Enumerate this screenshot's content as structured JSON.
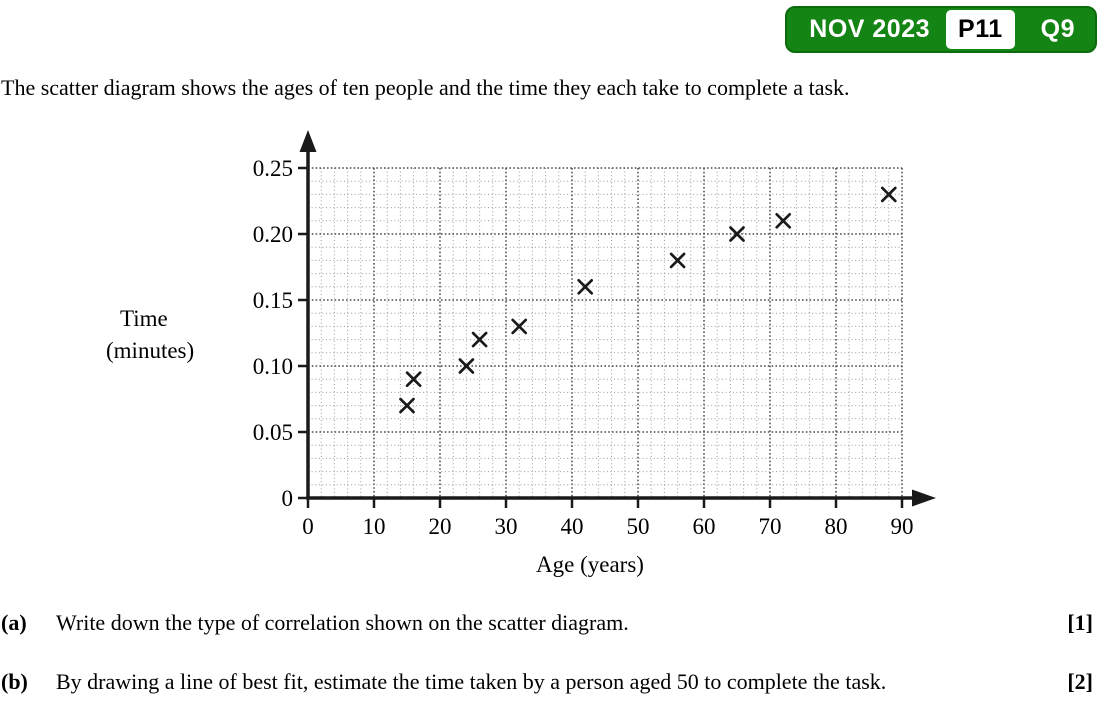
{
  "badge": {
    "session": "NOV 2023",
    "paper": "P11",
    "question": "Q9"
  },
  "colors": {
    "badge_green": "#148414",
    "badge_border": "#0c6b0c",
    "badge_text": "#ffffff",
    "paper_box_bg": "#ffffff",
    "paper_box_text": "#000000",
    "axis": "#1a1a1a",
    "grid_minor": "#9a9a9a",
    "grid_major": "#4a4a4a",
    "marker": "#1a1a1a",
    "text": "#000000"
  },
  "intro_text": "The scatter diagram shows the ages of ten people and the time they each take to complete a task.",
  "chart_data": {
    "type": "scatter",
    "title": "",
    "xlabel": "Age (years)",
    "ylabel": "Time (minutes)",
    "ylabel_lines": [
      "Time",
      "(minutes)"
    ],
    "xlim": [
      0,
      90
    ],
    "ylim": [
      0,
      0.25
    ],
    "x_major_ticks": [
      0,
      10,
      20,
      30,
      40,
      50,
      60,
      70,
      80,
      90
    ],
    "x_minor_step": 2,
    "y_major_ticks": [
      0,
      0.05,
      0.1,
      0.15,
      0.2,
      0.25
    ],
    "y_tick_labels": [
      "0",
      "0.05",
      "0.10",
      "0.15",
      "0.20",
      "0.25"
    ],
    "y_minor_step": 0.01,
    "grid_style": "dotted",
    "legend": "none",
    "marker": "x",
    "points": [
      [
        15,
        0.07
      ],
      [
        16,
        0.09
      ],
      [
        24,
        0.1
      ],
      [
        26,
        0.12
      ],
      [
        32,
        0.13
      ],
      [
        42,
        0.16
      ],
      [
        56,
        0.18
      ],
      [
        65,
        0.2
      ],
      [
        72,
        0.21
      ],
      [
        88,
        0.23
      ]
    ]
  },
  "questions": [
    {
      "label": "(a)",
      "text": "Write down the type of correlation shown on the scatter diagram.",
      "marks": "[1]"
    },
    {
      "label": "(b)",
      "text": "By drawing a line of best fit, estimate the time taken by a person aged 50 to complete the task.",
      "marks": "[2]"
    }
  ]
}
